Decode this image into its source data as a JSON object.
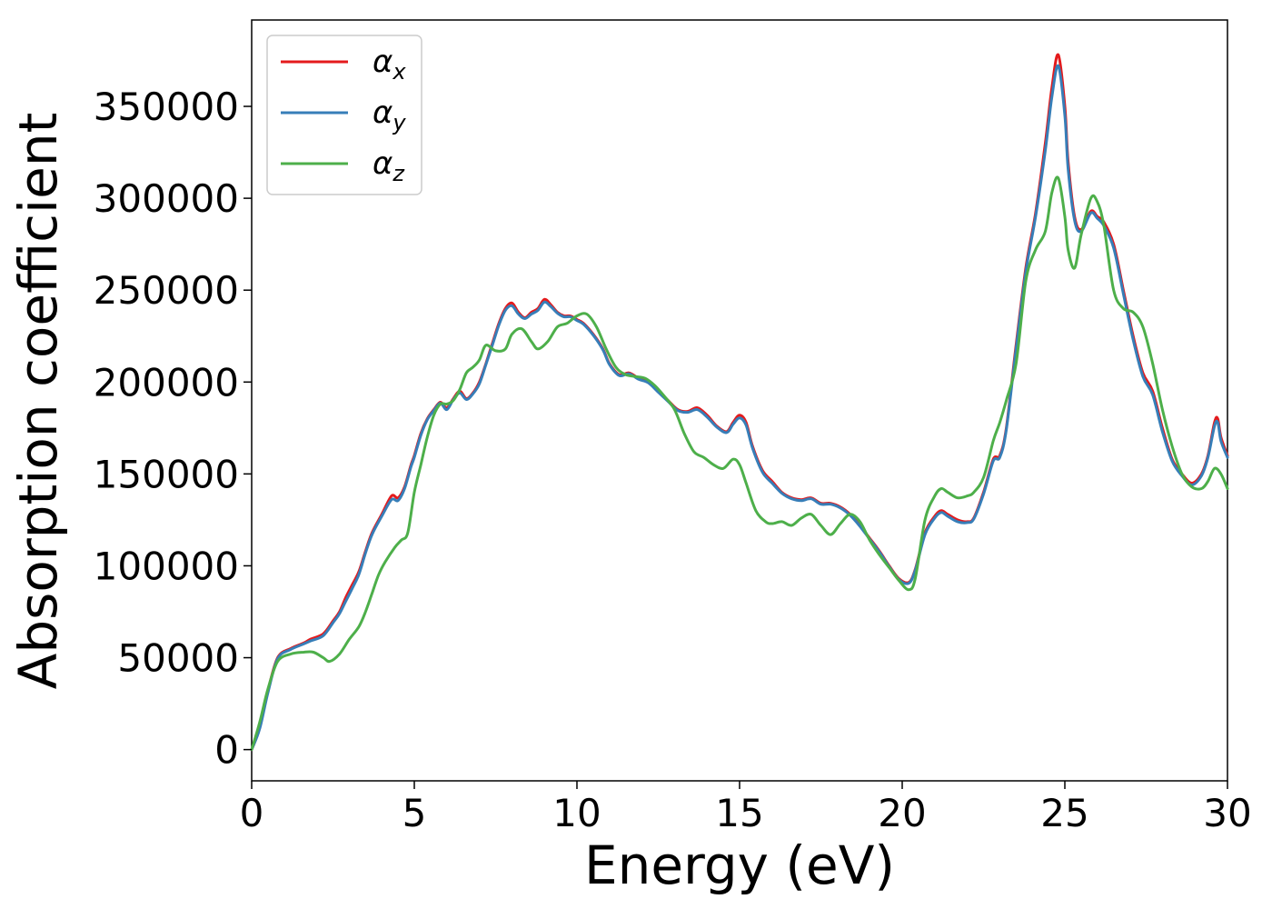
{
  "chart_data": {
    "type": "line",
    "title": "",
    "xlabel": "Energy (eV)",
    "ylabel": "Absorption coefficient",
    "xlim": [
      0,
      30
    ],
    "ylim": [
      -17000,
      397000
    ],
    "xticks": [
      0,
      5,
      10,
      15,
      20,
      25,
      30
    ],
    "xtick_labels": [
      "0",
      "5",
      "10",
      "15",
      "20",
      "25",
      "30"
    ],
    "yticks": [
      0,
      50000,
      100000,
      150000,
      200000,
      250000,
      300000,
      350000
    ],
    "ytick_labels": [
      "0",
      "50000",
      "100000",
      "150000",
      "200000",
      "250000",
      "300000",
      "350000"
    ],
    "grid": false,
    "legend_position": "top-left",
    "series": [
      {
        "name": "α",
        "subscript": "x",
        "color": "#e41a1c",
        "x": [
          0,
          0.25,
          0.5,
          0.8,
          1.2,
          1.6,
          1.8,
          2.2,
          2.5,
          2.7,
          2.9,
          3.1,
          3.3,
          3.5,
          3.7,
          4,
          4.3,
          4.5,
          4.7,
          4.9,
          5,
          5.2,
          5.4,
          5.6,
          5.8,
          6,
          6.2,
          6.4,
          6.6,
          6.8,
          7,
          7.2,
          7.4,
          7.6,
          7.8,
          8,
          8.2,
          8.4,
          8.6,
          8.8,
          9,
          9.2,
          9.4,
          9.6,
          9.8,
          10,
          10.2,
          10.5,
          10.8,
          11,
          11.3,
          11.6,
          11.9,
          12.2,
          12.5,
          12.8,
          13.1,
          13.4,
          13.7,
          14,
          14.3,
          14.6,
          14.8,
          15,
          15.2,
          15.4,
          15.7,
          16,
          16.3,
          16.6,
          16.9,
          17.2,
          17.5,
          17.8,
          18.1,
          18.4,
          18.7,
          19,
          19.3,
          19.6,
          19.9,
          20.2,
          20.4,
          20.7,
          21,
          21.2,
          21.4,
          21.7,
          22,
          22.2,
          22.5,
          22.8,
          23,
          23.2,
          23.5,
          23.8,
          24.1,
          24.4,
          24.6,
          24.8,
          25,
          25.1,
          25.3,
          25.5,
          25.8,
          26,
          26.2,
          26.5,
          26.8,
          27.1,
          27.4,
          27.7,
          28,
          28.3,
          28.6,
          28.9,
          29.2,
          29.4,
          29.6,
          29.7,
          29.8,
          30
        ],
        "values": [
          0,
          12000,
          32000,
          50000,
          55000,
          58000,
          60000,
          63000,
          70000,
          75000,
          83000,
          90000,
          97000,
          108000,
          118000,
          128000,
          138000,
          137000,
          143000,
          155000,
          160000,
          172000,
          180000,
          185000,
          189000,
          186000,
          191000,
          195000,
          191000,
          194000,
          200000,
          210000,
          221000,
          232000,
          240000,
          243000,
          238000,
          235000,
          238000,
          240000,
          245000,
          242000,
          238000,
          236000,
          236000,
          234000,
          232000,
          226000,
          218000,
          210000,
          204000,
          205000,
          202000,
          200000,
          195000,
          190000,
          185000,
          184000,
          186000,
          182000,
          176000,
          173000,
          178000,
          182000,
          178000,
          165000,
          152000,
          146000,
          140000,
          137000,
          136000,
          137000,
          134000,
          134000,
          132000,
          128000,
          122000,
          115000,
          108000,
          100000,
          93000,
          91000,
          98000,
          118000,
          127000,
          130000,
          128000,
          125000,
          124000,
          126000,
          140000,
          158000,
          160000,
          175000,
          220000,
          262000,
          292000,
          330000,
          360000,
          378000,
          350000,
          320000,
          290000,
          283000,
          293000,
          290000,
          287000,
          275000,
          250000,
          225000,
          205000,
          195000,
          175000,
          158000,
          150000,
          145000,
          150000,
          160000,
          178000,
          180000,
          170000,
          160000
        ]
      },
      {
        "name": "α",
        "subscript": "y",
        "color": "#377eb8",
        "x": [
          0,
          0.25,
          0.5,
          0.8,
          1.2,
          1.6,
          1.8,
          2.2,
          2.5,
          2.7,
          2.9,
          3.1,
          3.3,
          3.5,
          3.7,
          4,
          4.3,
          4.5,
          4.7,
          4.9,
          5,
          5.2,
          5.4,
          5.6,
          5.8,
          6,
          6.2,
          6.4,
          6.6,
          6.8,
          7,
          7.2,
          7.4,
          7.6,
          7.8,
          8,
          8.2,
          8.4,
          8.6,
          8.8,
          9,
          9.2,
          9.4,
          9.6,
          9.8,
          10,
          10.2,
          10.5,
          10.8,
          11,
          11.3,
          11.6,
          11.9,
          12.2,
          12.5,
          12.8,
          13.1,
          13.4,
          13.7,
          14,
          14.3,
          14.6,
          14.8,
          15,
          15.2,
          15.4,
          15.7,
          16,
          16.3,
          16.6,
          16.9,
          17.2,
          17.5,
          17.8,
          18.1,
          18.4,
          18.7,
          19,
          19.3,
          19.6,
          19.9,
          20.2,
          20.4,
          20.7,
          21,
          21.2,
          21.4,
          21.7,
          22,
          22.2,
          22.5,
          22.8,
          23,
          23.2,
          23.5,
          23.8,
          24.1,
          24.4,
          24.6,
          24.8,
          25,
          25.1,
          25.3,
          25.5,
          25.8,
          26,
          26.2,
          26.5,
          26.8,
          27.1,
          27.4,
          27.7,
          28,
          28.3,
          28.6,
          28.9,
          29.2,
          29.4,
          29.6,
          29.7,
          29.8,
          30
        ],
        "values": [
          0,
          11500,
          31000,
          49500,
          54500,
          57500,
          59000,
          62000,
          69000,
          74000,
          81000,
          88000,
          95500,
          107000,
          117000,
          127000,
          136000,
          135500,
          142000,
          154000,
          159000,
          171000,
          179500,
          184500,
          188500,
          185000,
          190500,
          194000,
          190500,
          193500,
          199000,
          209500,
          220000,
          231000,
          239000,
          241500,
          237000,
          234500,
          237000,
          239000,
          243500,
          241000,
          237500,
          235500,
          235500,
          233500,
          231500,
          225500,
          217500,
          209500,
          203500,
          204500,
          201500,
          199500,
          194500,
          189500,
          184500,
          183500,
          185000,
          181000,
          175500,
          172500,
          177000,
          180500,
          176500,
          164000,
          151000,
          145000,
          139500,
          136500,
          135500,
          136500,
          133500,
          133500,
          131500,
          127500,
          121500,
          114500,
          107500,
          99500,
          92500,
          90500,
          97500,
          117000,
          126000,
          129000,
          127000,
          124000,
          123500,
          125500,
          139000,
          157000,
          159000,
          174000,
          218000,
          260000,
          290000,
          326000,
          355000,
          372000,
          345000,
          316000,
          288000,
          282000,
          292000,
          289000,
          285000,
          273000,
          248000,
          223000,
          203000,
          193000,
          173000,
          157000,
          149000,
          144000,
          149000,
          159000,
          176000,
          178000,
          168000,
          159000
        ]
      },
      {
        "name": "α",
        "subscript": "z",
        "color": "#4daf4a",
        "x": [
          0,
          0.25,
          0.5,
          0.8,
          1.2,
          1.6,
          1.9,
          2.2,
          2.4,
          2.7,
          3,
          3.3,
          3.5,
          3.7,
          3.9,
          4.1,
          4.4,
          4.6,
          4.8,
          5,
          5.2,
          5.4,
          5.6,
          5.8,
          6,
          6.2,
          6.4,
          6.6,
          6.8,
          7,
          7.2,
          7.5,
          7.8,
          8,
          8.3,
          8.6,
          8.8,
          9.1,
          9.4,
          9.7,
          10,
          10.3,
          10.6,
          10.9,
          11.2,
          11.5,
          11.8,
          12.1,
          12.4,
          12.7,
          13,
          13.3,
          13.6,
          13.9,
          14.2,
          14.5,
          14.8,
          15,
          15.2,
          15.5,
          15.8,
          16,
          16.3,
          16.6,
          16.9,
          17.2,
          17.5,
          17.8,
          18.1,
          18.4,
          18.7,
          19,
          19.3,
          19.6,
          19.9,
          20.2,
          20.4,
          20.7,
          21,
          21.2,
          21.4,
          21.7,
          22,
          22.2,
          22.5,
          22.8,
          23,
          23.2,
          23.5,
          23.8,
          24.1,
          24.4,
          24.6,
          24.8,
          25,
          25.1,
          25.3,
          25.5,
          25.8,
          26,
          26.2,
          26.5,
          26.8,
          27.1,
          27.4,
          27.7,
          28,
          28.3,
          28.6,
          28.9,
          29.2,
          29.4,
          29.6,
          29.8,
          30
        ],
        "values": [
          0,
          15000,
          33000,
          48000,
          52000,
          53000,
          53000,
          50000,
          48000,
          52000,
          60000,
          67000,
          75000,
          85000,
          95000,
          102000,
          110000,
          114000,
          118000,
          140000,
          155000,
          170000,
          182000,
          188000,
          188000,
          190000,
          196000,
          205000,
          208000,
          212000,
          220000,
          217000,
          218000,
          226000,
          229000,
          222000,
          218000,
          222000,
          230000,
          232000,
          236000,
          237000,
          230000,
          218000,
          208000,
          204000,
          203000,
          202000,
          198000,
          192000,
          185000,
          172000,
          162000,
          159000,
          155000,
          153000,
          158000,
          155000,
          145000,
          130000,
          124000,
          123000,
          124000,
          122000,
          126000,
          128000,
          122000,
          117000,
          123000,
          128000,
          124000,
          114000,
          106000,
          99000,
          92000,
          87000,
          93000,
          125000,
          138000,
          142000,
          140000,
          137000,
          138000,
          140000,
          148000,
          168000,
          178000,
          190000,
          210000,
          255000,
          272000,
          282000,
          303000,
          311000,
          290000,
          272000,
          262000,
          280000,
          300000,
          298000,
          285000,
          250000,
          240000,
          238000,
          230000,
          210000,
          185000,
          165000,
          150000,
          143000,
          142000,
          146000,
          153000,
          150000,
          142000
        ]
      }
    ]
  }
}
